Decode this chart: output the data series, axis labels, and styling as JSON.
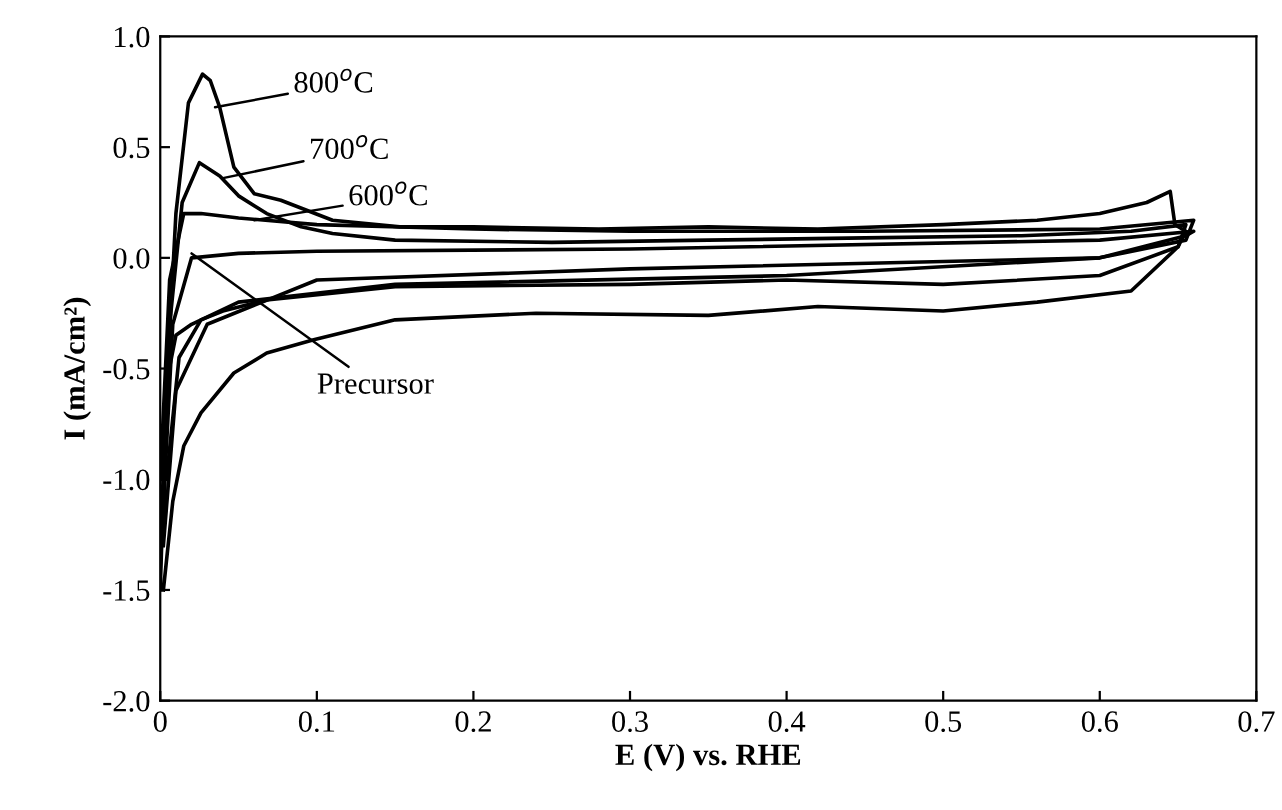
{
  "chart_data": {
    "type": "line",
    "xlabel": "E (V) vs. RHE",
    "ylabel": "I (mA/cm²)",
    "xlim": [
      0,
      0.7
    ],
    "xticks": [
      {
        "value": 0,
        "label": "0"
      },
      0.1,
      0.2,
      0.3,
      0.4,
      0.5,
      0.6,
      0.7
    ],
    "ylim": [
      -2.0,
      1.0
    ],
    "yticks": [
      {
        "value": -2.0,
        "label": "-2.0"
      },
      {
        "value": -1.5,
        "label": "-1.5"
      },
      {
        "value": -1.0,
        "label": "-1.0"
      },
      {
        "value": -0.5,
        "label": "-0.5"
      },
      {
        "value": 0.0,
        "label": "0.0"
      },
      {
        "value": 0.5,
        "label": "0.5"
      },
      {
        "value": 1.0,
        "label": "1.0"
      }
    ],
    "grid": false,
    "marker": "none",
    "line_style": "solid",
    "series": [
      {
        "color": "#000000",
        "x": [
          0.0,
          0.004,
          0.01,
          0.018,
          0.027,
          0.032,
          0.038,
          0.047,
          0.06,
          0.077,
          0.11,
          0.153,
          0.2,
          0.28,
          0.35,
          0.42,
          0.5,
          0.56,
          0.6,
          0.63,
          0.645,
          0.648,
          0.655,
          0.65,
          0.62,
          0.56,
          0.5,
          0.42,
          0.35,
          0.24,
          0.15,
          0.098,
          0.068,
          0.047,
          0.026,
          0.015,
          0.008,
          0.002
        ],
        "values": [
          -1.5,
          -0.6,
          0.2,
          0.7,
          0.83,
          0.8,
          0.68,
          0.41,
          0.29,
          0.26,
          0.17,
          0.14,
          0.14,
          0.13,
          0.14,
          0.13,
          0.15,
          0.17,
          0.2,
          0.25,
          0.3,
          0.15,
          0.12,
          0.05,
          -0.15,
          -0.2,
          -0.24,
          -0.22,
          -0.26,
          -0.25,
          -0.28,
          -0.37,
          -0.43,
          -0.52,
          -0.7,
          -0.85,
          -1.1,
          -1.5
        ]
      },
      {
        "color": "#000000",
        "x": [
          0.0,
          0.006,
          0.014,
          0.025,
          0.038,
          0.05,
          0.068,
          0.09,
          0.11,
          0.15,
          0.25,
          0.35,
          0.45,
          0.55,
          0.62,
          0.655,
          0.65,
          0.6,
          0.5,
          0.4,
          0.3,
          0.15,
          0.068,
          0.04,
          0.026,
          0.012,
          0.004
        ],
        "values": [
          -1.3,
          -0.3,
          0.25,
          0.43,
          0.37,
          0.28,
          0.2,
          0.14,
          0.11,
          0.08,
          0.07,
          0.08,
          0.09,
          0.1,
          0.12,
          0.15,
          0.05,
          -0.08,
          -0.12,
          -0.1,
          -0.12,
          -0.13,
          -0.19,
          -0.24,
          -0.28,
          -0.45,
          -1.0
        ]
      },
      {
        "color": "#000000",
        "x": [
          0.0,
          0.006,
          0.015,
          0.026,
          0.05,
          0.1,
          0.2,
          0.3,
          0.45,
          0.6,
          0.66,
          0.655,
          0.6,
          0.4,
          0.15,
          0.05,
          0.02,
          0.01,
          0.003
        ],
        "values": [
          -1.0,
          -0.1,
          0.2,
          0.2,
          0.18,
          0.15,
          0.13,
          0.12,
          0.12,
          0.13,
          0.17,
          0.08,
          0.0,
          -0.08,
          -0.12,
          -0.2,
          -0.3,
          -0.35,
          -0.6
        ]
      },
      {
        "color": "#000000",
        "x": [
          0.0,
          0.008,
          0.02,
          0.05,
          0.1,
          0.3,
          0.6,
          0.66,
          0.655,
          0.6,
          0.3,
          0.1,
          0.03,
          0.01,
          0.002
        ],
        "values": [
          -1.4,
          -0.3,
          0.0,
          0.02,
          0.03,
          0.04,
          0.08,
          0.12,
          0.1,
          0.0,
          -0.05,
          -0.1,
          -0.3,
          -0.6,
          -1.3
        ]
      }
    ],
    "annotations": [
      {
        "text": "800$^{o}$C",
        "x": 0.035,
        "y": 0.68
      },
      {
        "text": "700$^{o}$C",
        "x": 0.04,
        "y": 0.36
      },
      {
        "text": "600$^{o}$C",
        "x": 0.06,
        "y": 0.17
      },
      {
        "text": "Precursor",
        "x": 0.02,
        "y": 0.02
      }
    ]
  }
}
